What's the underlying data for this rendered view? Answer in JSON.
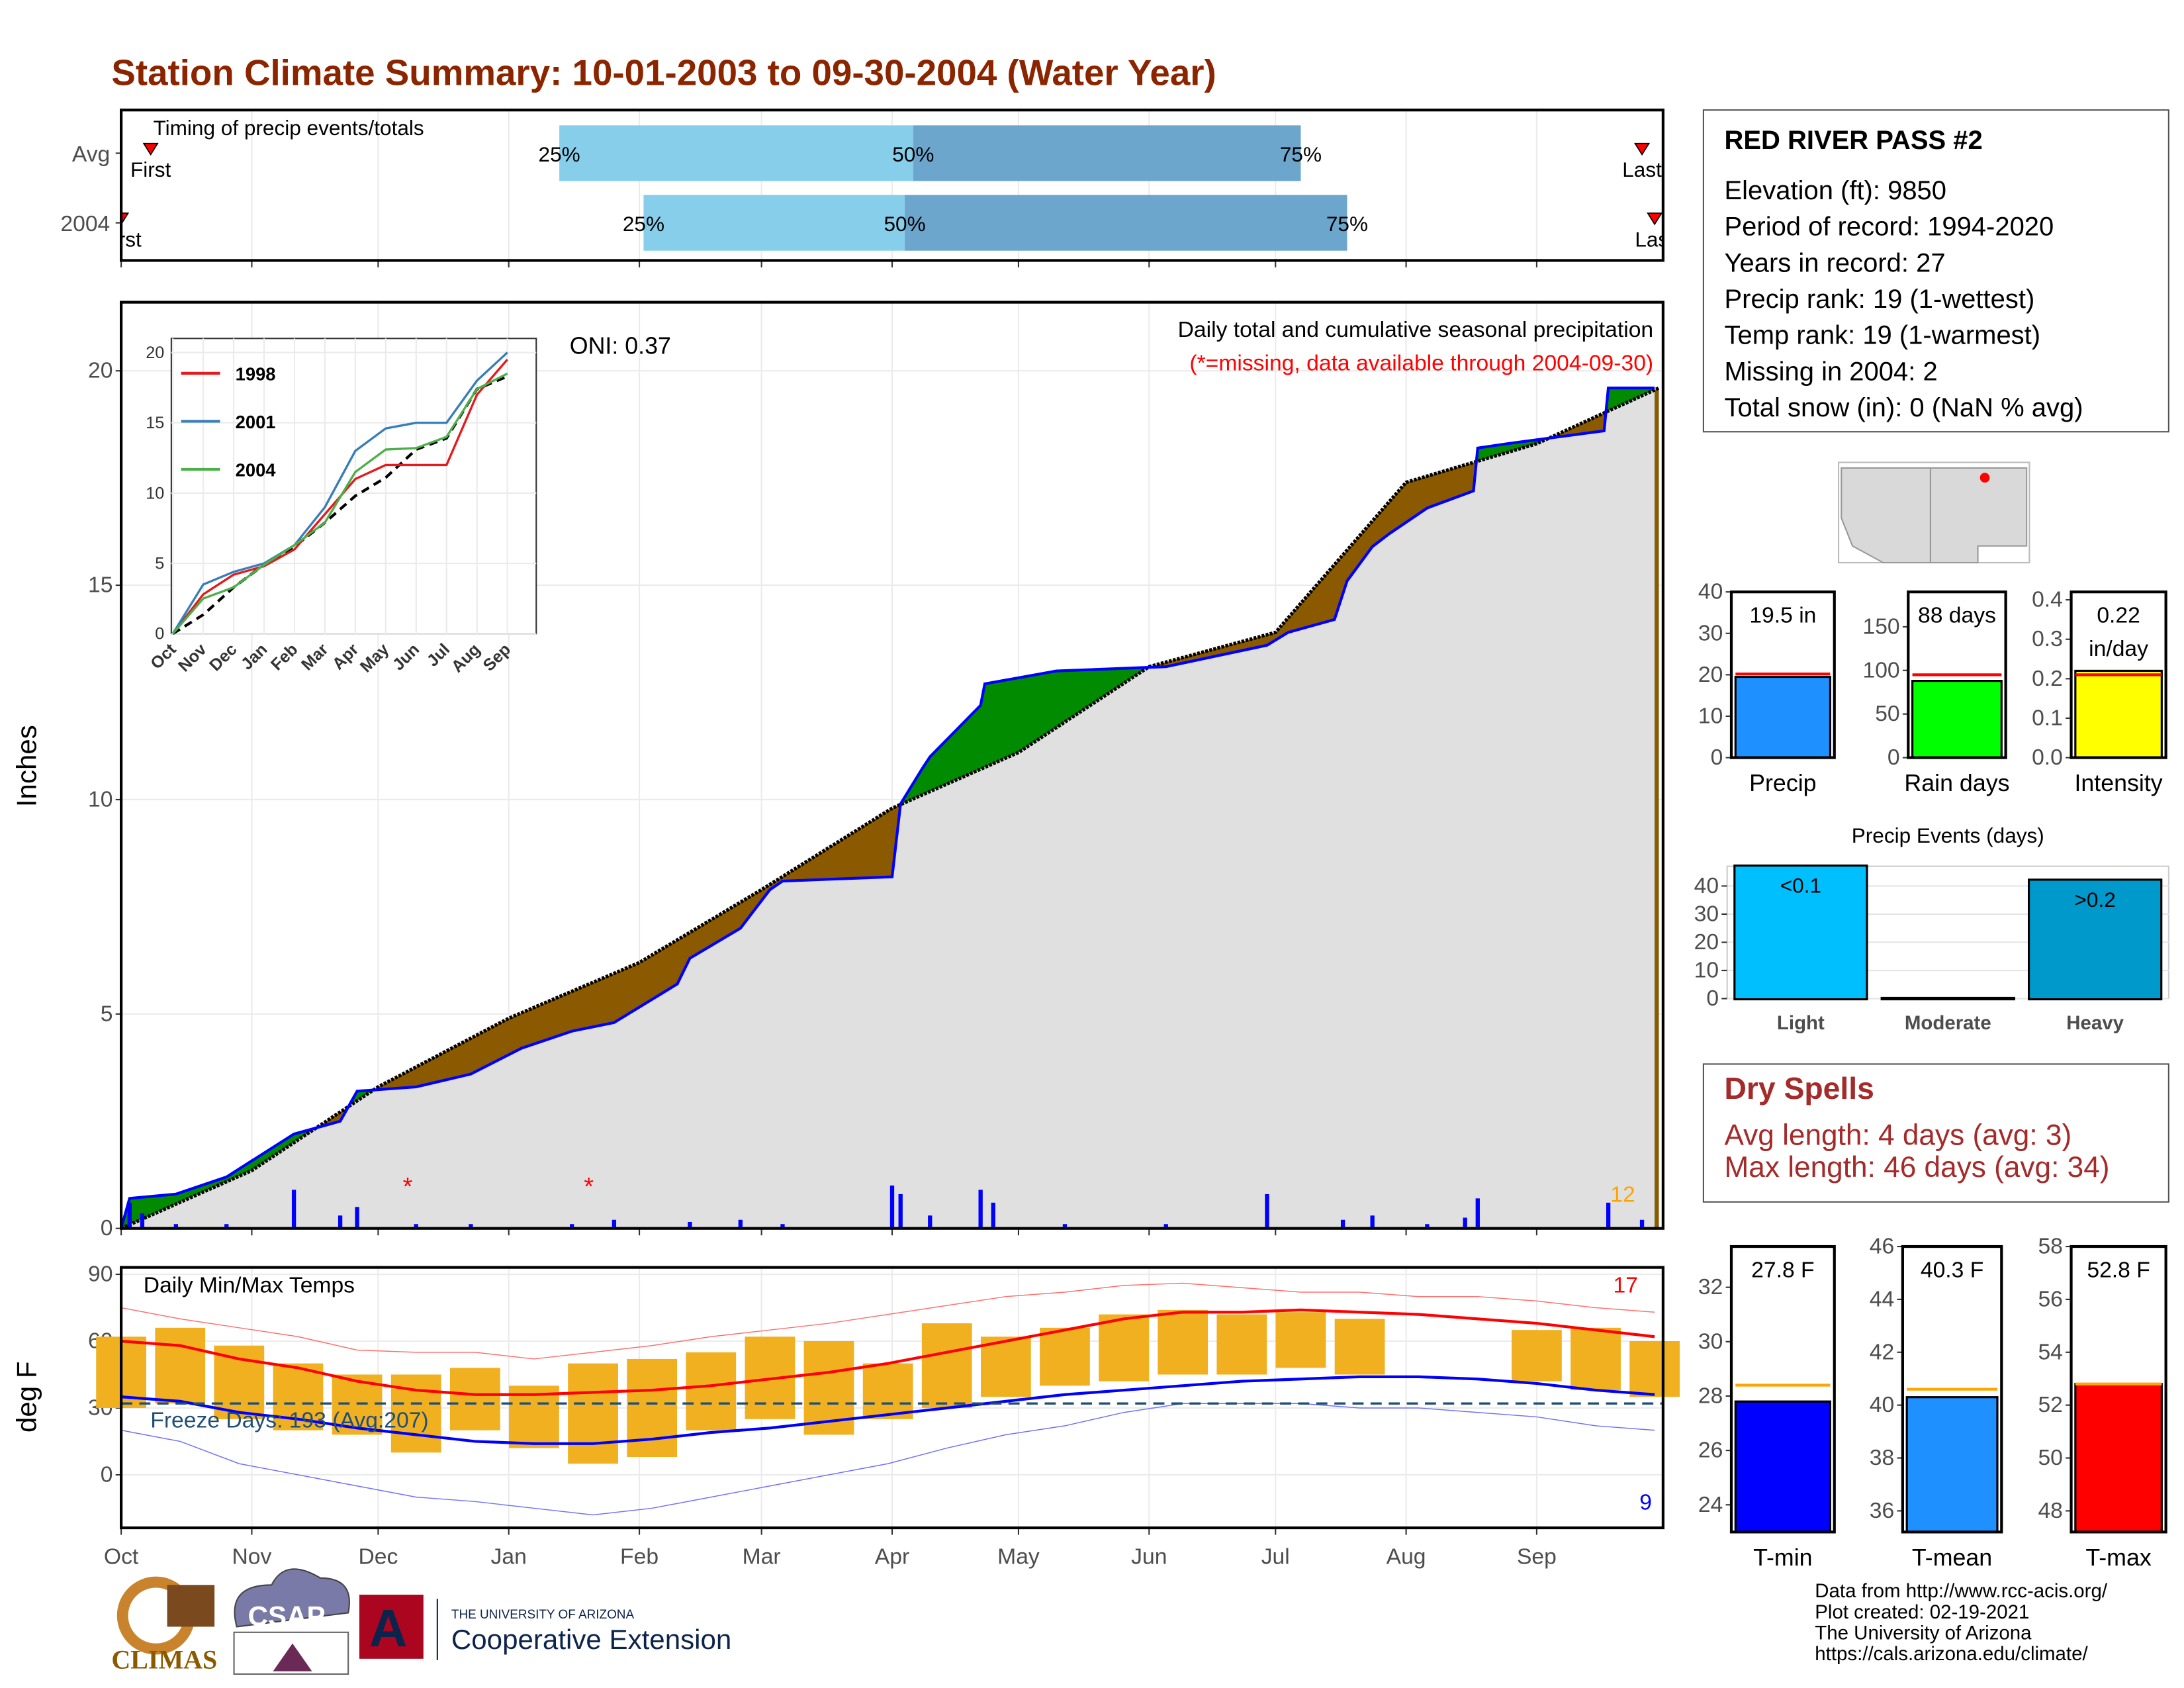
{
  "title": "Station Climate Summary: 10-01-2003 to 09-30-2004 (Water Year)",
  "station": {
    "title": "RED RIVER PASS #2",
    "lines": [
      "Elevation (ft): 9850",
      "Period of record: 1994-2020",
      "Years in record: 27",
      "Precip rank: 19 (1-wettest)",
      "Temp rank: 19 (1-warmest)",
      "Missing in 2004: 2",
      "Total snow (in): 0 (NaN % avg)"
    ]
  },
  "dry_spells": {
    "title": "Dry Spells",
    "lines": [
      "Avg length: 4 days (avg: 3)",
      "Max length: 46 days (avg: 34)"
    ]
  },
  "footer": [
    "Data from http://www.rcc-acis.org/",
    "Plot created: 02-19-2021",
    "The University of Arizona",
    "https://cals.arizona.edu/climate/"
  ],
  "logos": [
    "CLIMAS",
    "CSAP",
    "THE UNIVERSITY OF ARIZONA",
    "Cooperative Extension"
  ],
  "chart_data": [
    {
      "type": "timing",
      "title": "Timing of precip events/totals",
      "xlim": [
        0,
        366
      ],
      "xticks": [
        0,
        31,
        61,
        92,
        123,
        152,
        183,
        213,
        244,
        274,
        305,
        336
      ],
      "quantile_labels": [
        "25%",
        "50%",
        "75%"
      ],
      "first_label": "First",
      "last_label": "Last",
      "colors": [
        "#87ceeb",
        "#6ca6cd"
      ],
      "series": [
        {
          "name": "Avg",
          "first": 7,
          "q25": 104,
          "q50": 188,
          "q75": 280,
          "last": 361
        },
        {
          "name": "2004",
          "first": 0,
          "q25": 124,
          "q50": 186,
          "q75": 291,
          "last": 364
        }
      ]
    },
    {
      "type": "cumulative",
      "ylabel": "Inches",
      "oni": "ONI: 0.37",
      "subtitle": "Daily total and cumulative seasonal precipitation",
      "note": "(*=missing, data available through 2004-09-30)",
      "corner_label": "12",
      "xlim": [
        0,
        366
      ],
      "xticks": [
        0,
        31,
        61,
        92,
        123,
        152,
        183,
        213,
        244,
        274,
        305,
        336
      ],
      "ylim": [
        0,
        21.6
      ],
      "yticks": [
        0,
        5,
        10,
        15,
        20
      ],
      "grid": true,
      "above_color": "#008b00",
      "below_color": "#8b5a00",
      "series": [
        {
          "color": "#000000",
          "x": [
            0,
            31,
            61,
            92,
            123,
            152,
            183,
            213,
            244,
            274,
            305,
            336,
            365
          ],
          "values": [
            0,
            1.35,
            3.3,
            4.9,
            6.2,
            7.9,
            9.8,
            11.1,
            13.1,
            13.9,
            17.4,
            18.3,
            19.6
          ]
        },
        {
          "color": "#0000ff",
          "x": [
            0,
            2,
            13,
            25,
            41,
            52,
            56,
            70,
            83,
            95,
            107,
            117,
            132,
            135,
            147,
            154,
            157,
            183,
            185,
            190,
            192,
            204,
            205,
            222,
            248,
            272,
            277,
            288,
            291,
            297,
            301,
            310,
            321,
            322,
            329,
            352,
            353,
            364
          ],
          "values": [
            0,
            0.7,
            0.8,
            1.2,
            2.2,
            2.5,
            3.2,
            3.3,
            3.6,
            4.2,
            4.6,
            4.8,
            5.7,
            6.3,
            7.0,
            7.9,
            8.1,
            8.2,
            9.9,
            10.7,
            11.0,
            12.2,
            12.7,
            13.0,
            13.1,
            13.6,
            13.9,
            14.2,
            15.1,
            15.9,
            16.2,
            16.8,
            17.2,
            18.2,
            18.3,
            18.6,
            19.6,
            19.6
          ]
        }
      ],
      "daily": {
        "color": "#0000ff",
        "x": [
          2,
          5,
          13,
          25,
          41,
          52,
          56,
          70,
          83,
          107,
          117,
          135,
          147,
          157,
          183,
          185,
          192,
          204,
          207,
          224,
          248,
          272,
          290,
          297,
          310,
          319,
          322,
          353,
          361
        ],
        "values": [
          0.6,
          0.35,
          0.1,
          0.1,
          0.9,
          0.3,
          0.5,
          0.1,
          0.1,
          0.1,
          0.2,
          0.15,
          0.2,
          0.1,
          1.0,
          0.8,
          0.3,
          0.9,
          0.6,
          0.1,
          0.1,
          0.8,
          0.2,
          0.3,
          0.1,
          0.25,
          0.7,
          0.6,
          0.2
        ]
      },
      "missing_symbol": "*",
      "missing": [
        68,
        111
      ]
    },
    {
      "type": "inset",
      "categories": [
        "Oct",
        "Nov",
        "Dec",
        "Jan",
        "Feb",
        "Mar",
        "Apr",
        "May",
        "Jun",
        "Jul",
        "Aug",
        "Sep"
      ],
      "ylim": [
        0,
        21
      ],
      "yticks": [
        0,
        5,
        10,
        15,
        20
      ],
      "series": [
        {
          "name": "1998",
          "color": "#e41a1c",
          "values": [
            0,
            2.8,
            4.2,
            4.8,
            6,
            8.5,
            11,
            12,
            12,
            12,
            17,
            19.5
          ]
        },
        {
          "name": "2001",
          "color": "#377eb8",
          "values": [
            0,
            3.5,
            4.4,
            5,
            6.3,
            9,
            13,
            14.6,
            15,
            15,
            18,
            20
          ]
        },
        {
          "name": "2004",
          "color": "#4daf4a",
          "values": [
            0,
            2.5,
            3.3,
            4.9,
            6.3,
            7.9,
            11.5,
            13.1,
            13.2,
            14,
            17.4,
            18.5
          ]
        }
      ],
      "average": {
        "color": "#000000",
        "values": [
          0,
          1.35,
          3.3,
          4.9,
          6.2,
          7.9,
          9.8,
          11.1,
          13.1,
          13.9,
          17.4,
          18.3
        ]
      }
    },
    {
      "type": "temps",
      "title": "Daily Min/Max Temps",
      "ylabel": "deg F",
      "freeze_label": "Freeze Days: 193 (Avg:207)",
      "high_count": "17",
      "low_count": "9",
      "freeze_line": 32,
      "xlim": [
        0,
        366
      ],
      "xticks": [
        {
          "value": 0,
          "label": "Oct"
        },
        {
          "value": 31,
          "label": "Nov"
        },
        {
          "value": 61,
          "label": "Dec"
        },
        {
          "value": 92,
          "label": "Jan"
        },
        {
          "value": 123,
          "label": "Feb"
        },
        {
          "value": 152,
          "label": "Mar"
        },
        {
          "value": 183,
          "label": "Apr"
        },
        {
          "value": 213,
          "label": "May"
        },
        {
          "value": 244,
          "label": "Jun"
        },
        {
          "value": 274,
          "label": "Jul"
        },
        {
          "value": 305,
          "label": "Aug"
        },
        {
          "value": 336,
          "label": "Sep"
        }
      ],
      "ylim": [
        -23.8,
        93.1
      ],
      "yticks": [
        0,
        30,
        60,
        90
      ],
      "x": [
        0,
        14,
        28,
        42,
        56,
        70,
        84,
        98,
        112,
        126,
        140,
        154,
        168,
        182,
        196,
        210,
        224,
        238,
        252,
        266,
        280,
        294,
        308,
        322,
        336,
        350,
        364
      ],
      "ranges": {
        "color": "#f0b020",
        "low": [
          30,
          32,
          25,
          20,
          18,
          10,
          20,
          12,
          5,
          8,
          20,
          25,
          18,
          25,
          30,
          35,
          40,
          42,
          45,
          45,
          48,
          45,
          null,
          null,
          42,
          38,
          35
        ],
        "high": [
          62,
          66,
          58,
          50,
          45,
          45,
          48,
          40,
          50,
          52,
          55,
          62,
          60,
          50,
          68,
          62,
          66,
          72,
          74,
          72,
          73,
          70,
          null,
          null,
          65,
          66,
          60
        ]
      },
      "series": [
        {
          "color": "#ff0000",
          "width": 2,
          "values": [
            60,
            58,
            52,
            48,
            42,
            38,
            36,
            36,
            37,
            38,
            40,
            43,
            46,
            50,
            55,
            60,
            65,
            70,
            73,
            73,
            74,
            73,
            72,
            70,
            68,
            65,
            62
          ]
        },
        {
          "color": "#0000ff",
          "width": 2,
          "values": [
            35,
            33,
            28,
            25,
            21,
            18,
            15,
            14,
            14,
            16,
            19,
            21,
            24,
            27,
            30,
            33,
            36,
            38,
            40,
            42,
            43,
            44,
            44,
            43,
            41,
            38,
            36
          ]
        },
        {
          "color": "#ff7070",
          "width": 0.7,
          "values": [
            75,
            70,
            66,
            62,
            56,
            55,
            55,
            52,
            55,
            58,
            62,
            65,
            68,
            72,
            76,
            80,
            82,
            85,
            86,
            84,
            82,
            82,
            80,
            80,
            78,
            75,
            73
          ]
        },
        {
          "color": "#7070ff",
          "width": 0.7,
          "values": [
            20,
            15,
            5,
            0,
            -5,
            -10,
            -12,
            -15,
            -18,
            -15,
            -10,
            -5,
            0,
            5,
            12,
            18,
            22,
            28,
            32,
            32,
            32,
            30,
            30,
            28,
            26,
            22,
            20
          ]
        }
      ]
    },
    {
      "type": "gauge",
      "xlabel": "Precip",
      "value": 19.5,
      "value_label": [
        "19.5 in"
      ],
      "average": 20.2,
      "color": "#1e90ff",
      "average_color": "#ff0000",
      "ylim": [
        0,
        40
      ],
      "yticks": [
        0,
        10,
        20,
        30,
        40
      ]
    },
    {
      "type": "gauge",
      "xlabel": "Rain days",
      "value": 88,
      "value_label": [
        "88 days"
      ],
      "average": 95,
      "color": "#00ff00",
      "average_color": "#ff0000",
      "ylim": [
        0,
        190
      ],
      "yticks": [
        0,
        50,
        100,
        150
      ]
    },
    {
      "type": "gauge",
      "xlabel": "Intensity",
      "value": 0.22,
      "value_label": [
        "0.22",
        "in/day"
      ],
      "average": 0.21,
      "color": "#ffff00",
      "average_color": "#ff0000",
      "ylim": [
        0,
        0.42
      ],
      "yticks": [
        {
          "value": 0,
          "label": "0.0"
        },
        0.1,
        0.2,
        0.3,
        0.4
      ]
    },
    {
      "type": "bar",
      "title": "Precip Events (days)",
      "categories": [
        "Light",
        "Moderate",
        "Heavy"
      ],
      "values": [
        47,
        0,
        42
      ],
      "bar_labels": [
        "<0.1",
        null,
        ">0.2"
      ],
      "colors": [
        "#00bfff",
        "#00bfff",
        "#0099cc"
      ],
      "ylim": [
        0,
        47
      ],
      "yticks": [
        0,
        10,
        20,
        30,
        40
      ],
      "grid": true
    },
    {
      "type": "gauge",
      "xlabel": "T-min",
      "value": 27.8,
      "value_label": [
        "27.8 F"
      ],
      "average": 28.4,
      "color": "#0000ff",
      "average_color": "#ffa500",
      "ylim": [
        23,
        33.5
      ],
      "yticks": [
        24,
        26,
        28,
        30,
        32
      ]
    },
    {
      "type": "gauge",
      "xlabel": "T-mean",
      "value": 40.3,
      "value_label": [
        "40.3 F"
      ],
      "average": 40.6,
      "color": "#1e90ff",
      "average_color": "#ffa500",
      "ylim": [
        35.2,
        46
      ],
      "yticks": [
        36,
        38,
        40,
        42,
        44,
        46
      ]
    },
    {
      "type": "gauge",
      "xlabel": "T-max",
      "value": 52.8,
      "value_label": [
        "52.8 F"
      ],
      "average": 52.8,
      "color": "#ff0000",
      "average_color": "#ffa500",
      "ylim": [
        47.2,
        58
      ],
      "yticks": [
        48,
        50,
        52,
        54,
        56,
        58
      ]
    }
  ]
}
